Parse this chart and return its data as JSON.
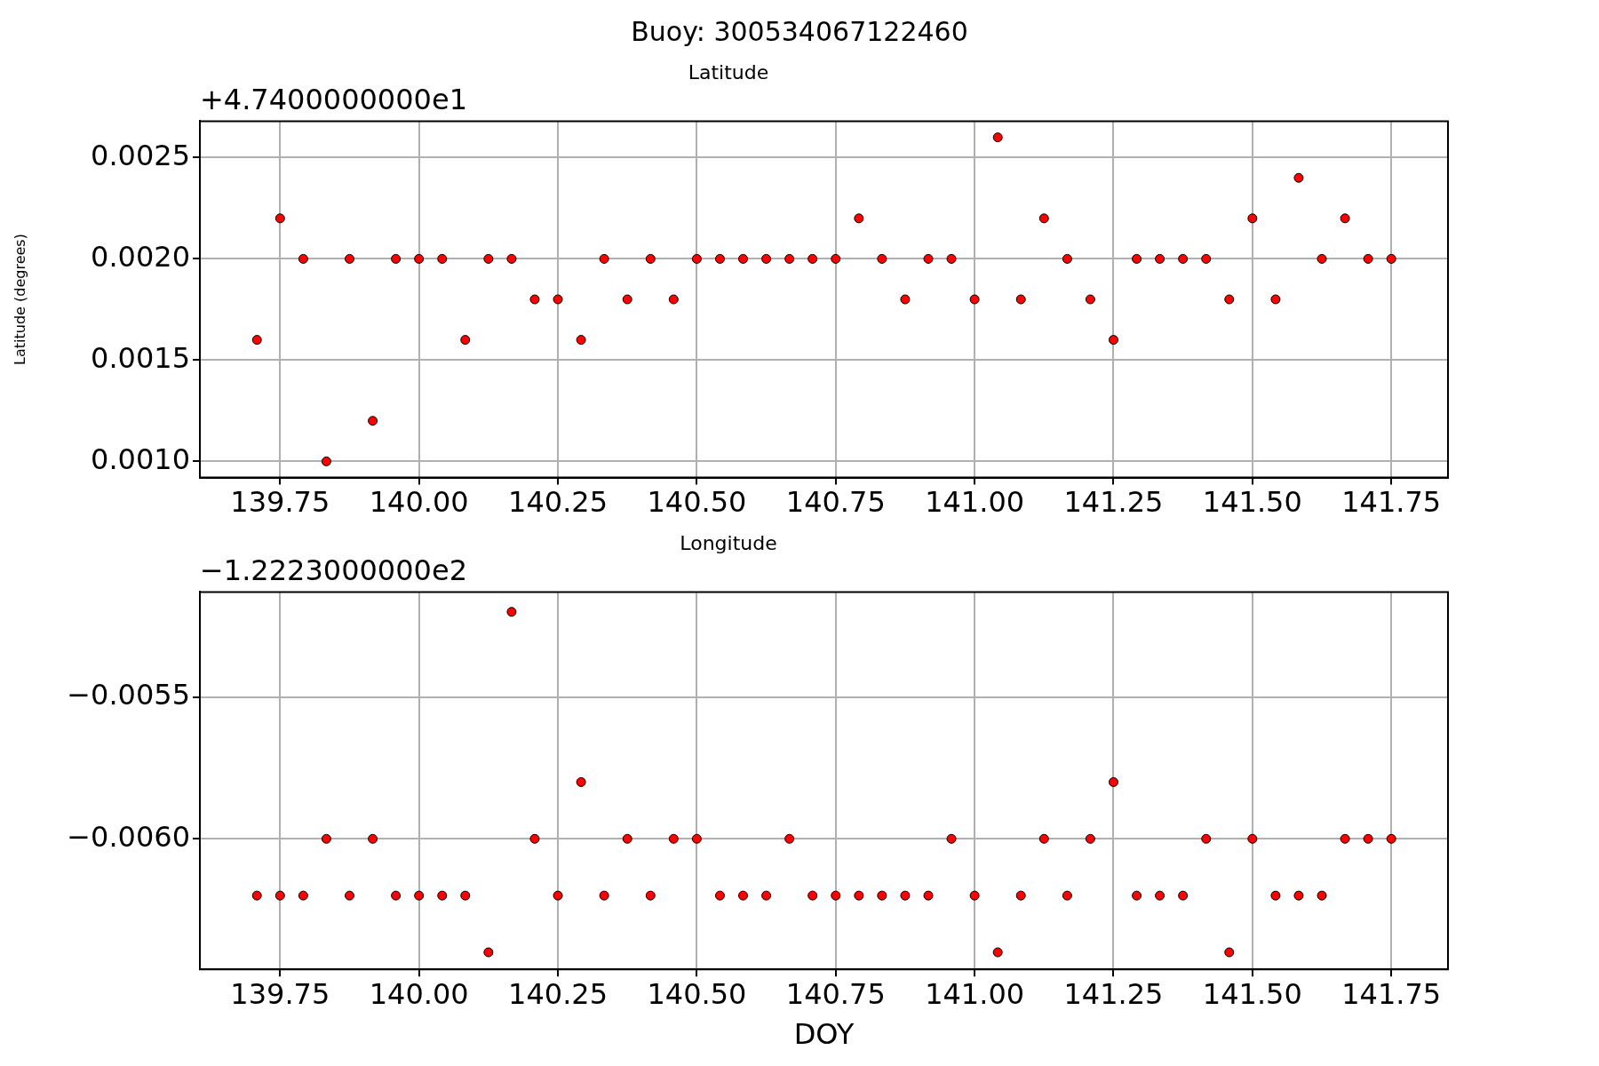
{
  "chart_data": [
    {
      "type": "scatter",
      "title": "Latitude",
      "ylabel": "Latitude (degrees)",
      "annotations": [
        "Buoy: 300534067122460",
        "+4.7400000000e1"
      ],
      "x": [
        139.7083,
        139.75,
        139.7917,
        139.8333,
        139.875,
        139.9167,
        139.9583,
        140,
        140.0417,
        140.0833,
        140.125,
        140.1667,
        140.2083,
        140.25,
        140.2917,
        140.3333,
        140.375,
        140.4167,
        140.4583,
        140.5,
        140.5417,
        140.5833,
        140.625,
        140.6667,
        140.7083,
        140.75,
        140.7917,
        140.8333,
        140.875,
        140.9167,
        140.9583,
        141,
        141.0417,
        141.0833,
        141.125,
        141.1667,
        141.2083,
        141.25,
        141.2917,
        141.3333,
        141.375,
        141.4167,
        141.4583,
        141.5,
        141.5417,
        141.5833,
        141.625,
        141.6667,
        141.7083,
        141.75
      ],
      "series": [
        {
          "color": "#ff0000",
          "values": [
            0.0016,
            0.0022,
            0.002,
            0.001,
            0.002,
            0.0012,
            0.002,
            0.002,
            0.002,
            0.0016,
            0.002,
            0.002,
            0.0018,
            0.0018,
            0.0016,
            0.002,
            0.0018,
            0.002,
            0.0018,
            0.002,
            0.002,
            0.002,
            0.002,
            0.002,
            0.002,
            0.002,
            0.0022,
            0.002,
            0.0018,
            0.002,
            0.002,
            0.0018,
            0.0026,
            0.0018,
            0.0022,
            0.002,
            0.0018,
            0.0016,
            0.002,
            0.002,
            0.002,
            0.002,
            0.0018,
            0.0022,
            0.0018,
            0.0024,
            0.002,
            0.0022,
            0.002,
            0.002
          ]
        }
      ],
      "xlim": [
        139.6056,
        141.852
      ],
      "xticks": [
        139.75,
        {
          "value": 140,
          "label": "140.00"
        },
        140.25,
        {
          "value": 140.5,
          "label": "140.50"
        },
        140.75,
        {
          "value": 141,
          "label": "141.00"
        },
        141.25,
        {
          "value": 141.5,
          "label": "141.50"
        },
        141.75
      ],
      "ylim": [
        0.00092,
        0.00268
      ],
      "yticks": [
        {
          "value": 0.001,
          "label": "0.0010"
        },
        {
          "value": 0.0015,
          "label": "0.0015"
        },
        {
          "value": 0.002,
          "label": "0.0020"
        },
        0.0025
      ],
      "grid": true,
      "marker": "circle",
      "legend": false
    },
    {
      "type": "scatter",
      "title": "Longitude",
      "xlabel": "DOY",
      "annotations": [
        "−1.2223000000e2"
      ],
      "x": [
        139.7083,
        139.75,
        139.7917,
        139.8333,
        139.875,
        139.9167,
        139.9583,
        140,
        140.0417,
        140.0833,
        140.125,
        140.1667,
        140.2083,
        140.25,
        140.2917,
        140.3333,
        140.375,
        140.4167,
        140.4583,
        140.5,
        140.5417,
        140.5833,
        140.625,
        140.6667,
        140.7083,
        140.75,
        140.7917,
        140.8333,
        140.875,
        140.9167,
        140.9583,
        141,
        141.0417,
        141.0833,
        141.125,
        141.1667,
        141.2083,
        141.25,
        141.2917,
        141.3333,
        141.375,
        141.4167,
        141.4583,
        141.5,
        141.5417,
        141.5833,
        141.625,
        141.6667,
        141.7083,
        141.75
      ],
      "series": [
        {
          "color": "#ff0000",
          "values": [
            -0.0062,
            -0.0062,
            -0.0062,
            -0.006,
            -0.0062,
            -0.006,
            -0.0062,
            -0.0062,
            -0.0062,
            -0.0062,
            -0.0064,
            -0.0052,
            -0.006,
            -0.0062,
            -0.0058,
            -0.0062,
            -0.006,
            -0.0062,
            -0.006,
            -0.006,
            -0.0062,
            -0.0062,
            -0.0062,
            -0.006,
            -0.0062,
            -0.0062,
            -0.0062,
            -0.0062,
            -0.0062,
            -0.0062,
            -0.006,
            -0.0062,
            -0.0064,
            -0.0062,
            -0.006,
            -0.0062,
            -0.006,
            -0.0058,
            -0.0062,
            -0.0062,
            -0.0062,
            -0.006,
            -0.0064,
            -0.006,
            -0.0062,
            -0.0062,
            -0.0062,
            -0.006,
            -0.006,
            -0.006
          ]
        }
      ],
      "xlim": [
        139.6056,
        141.852
      ],
      "xticks": [
        139.75,
        {
          "value": 140,
          "label": "140.00"
        },
        140.25,
        {
          "value": 140.5,
          "label": "140.50"
        },
        140.75,
        {
          "value": 141,
          "label": "141.00"
        },
        141.25,
        {
          "value": 141.5,
          "label": "141.50"
        },
        141.75
      ],
      "ylim": [
        -0.00646,
        -0.00513
      ],
      "yticks": [
        {
          "value": -0.006,
          "label": "−0.0060"
        },
        {
          "value": -0.0055,
          "label": "−0.0055"
        }
      ],
      "grid": true,
      "marker": "circle",
      "legend": false
    }
  ]
}
